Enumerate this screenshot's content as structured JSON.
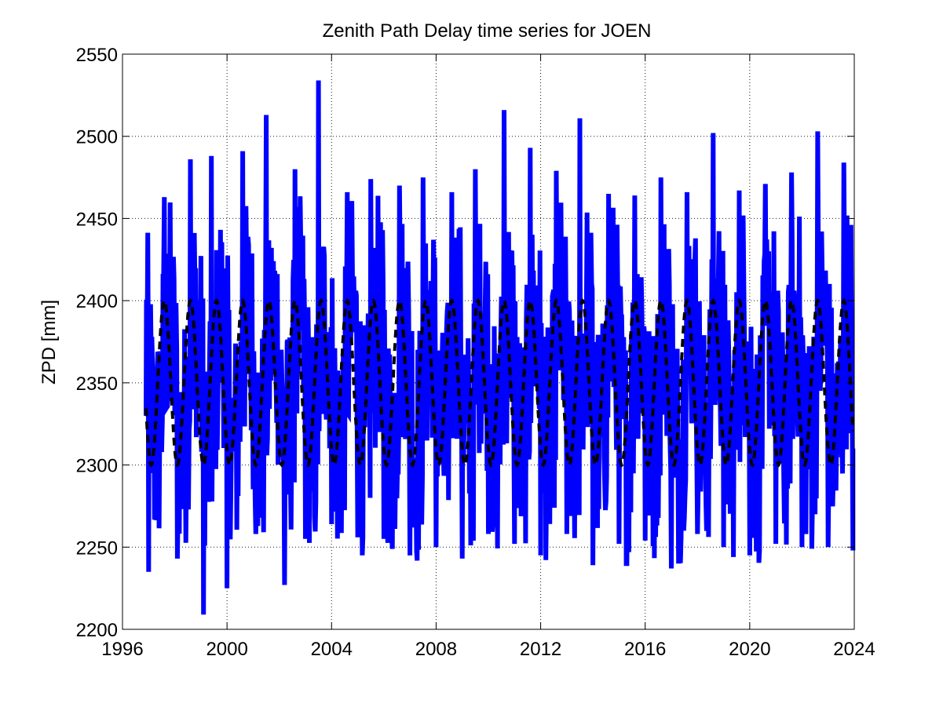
{
  "chart_data": {
    "type": "line",
    "title": "Zenith Path Delay time series for JOEN",
    "xlabel": "",
    "ylabel": "ZPD [mm]",
    "xlim": [
      1996,
      2024
    ],
    "ylim": [
      2200,
      2550
    ],
    "xticks": [
      1996,
      2000,
      2004,
      2008,
      2012,
      2016,
      2020,
      2024
    ],
    "yticks": [
      2200,
      2250,
      2300,
      2350,
      2400,
      2450,
      2500,
      2550
    ],
    "grid": true,
    "series": [
      {
        "style": "solid",
        "color": "#0000ff",
        "x_start": 1996.9,
        "x_end": 2023.95,
        "annual_mean": 2350,
        "peaks": [
          [
            1997.6,
            2463
          ],
          [
            1998.6,
            2486
          ],
          [
            1999.4,
            2488
          ],
          [
            2000.6,
            2491
          ],
          [
            2001.5,
            2513
          ],
          [
            2002.6,
            2480
          ],
          [
            2003.5,
            2534
          ],
          [
            2004.6,
            2466
          ],
          [
            2005.5,
            2474
          ],
          [
            2006.6,
            2470
          ],
          [
            2007.5,
            2475
          ],
          [
            2008.6,
            2466
          ],
          [
            2009.5,
            2480
          ],
          [
            2010.6,
            2516
          ],
          [
            2011.6,
            2493
          ],
          [
            2012.6,
            2479
          ],
          [
            2013.5,
            2511
          ],
          [
            2014.6,
            2465
          ],
          [
            2015.6,
            2464
          ],
          [
            2016.6,
            2475
          ],
          [
            2017.6,
            2466
          ],
          [
            2018.6,
            2502
          ],
          [
            2019.6,
            2467
          ],
          [
            2020.6,
            2471
          ],
          [
            2021.6,
            2478
          ],
          [
            2022.6,
            2503
          ],
          [
            2023.6,
            2484
          ]
        ],
        "troughs": [
          [
            1997.0,
            2235
          ],
          [
            1998.1,
            2243
          ],
          [
            1999.1,
            2209
          ],
          [
            2000.0,
            2225
          ],
          [
            2001.1,
            2258
          ],
          [
            2002.2,
            2227
          ],
          [
            2003.0,
            2255
          ],
          [
            2004.0,
            2264
          ],
          [
            2005.0,
            2256
          ],
          [
            2006.0,
            2255
          ],
          [
            2007.0,
            2245
          ],
          [
            2008.0,
            2250
          ],
          [
            2009.0,
            2243
          ],
          [
            2010.0,
            2258
          ],
          [
            2011.0,
            2252
          ],
          [
            2012.0,
            2245
          ],
          [
            2013.0,
            2258
          ],
          [
            2014.0,
            2239
          ],
          [
            2015.0,
            2252
          ],
          [
            2016.0,
            2254
          ],
          [
            2017.0,
            2237
          ],
          [
            2018.0,
            2258
          ],
          [
            2019.0,
            2250
          ],
          [
            2020.0,
            2245
          ],
          [
            2021.0,
            2252
          ],
          [
            2022.0,
            2250
          ],
          [
            2023.0,
            2250
          ],
          [
            2023.95,
            2248
          ]
        ]
      },
      {
        "style": "dashed",
        "color": "#000000",
        "x_start": 1996.9,
        "x_end": 2023.95,
        "mean": 2350,
        "amplitude": 50,
        "peak_phase": 0.6
      }
    ]
  }
}
